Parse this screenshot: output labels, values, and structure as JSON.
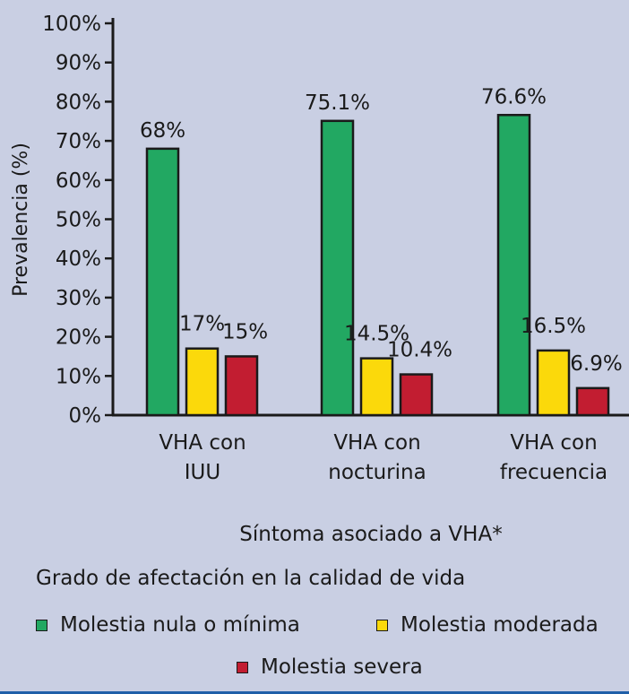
{
  "chart_data": {
    "type": "bar",
    "ylabel": "Prevalencia (%)",
    "xlabel": "Síntoma asociado a VHA*",
    "ylim": [
      0,
      100
    ],
    "yticks": [
      "0%",
      "10%",
      "20%",
      "30%",
      "40%",
      "50%",
      "60%",
      "70%",
      "80%",
      "90%",
      "100%"
    ],
    "categories": [
      [
        "VHA con",
        "IUU"
      ],
      [
        "VHA con",
        "nocturina"
      ],
      [
        "VHA con",
        "frecuencia"
      ]
    ],
    "series": [
      {
        "name": "Molestia nula o mínima",
        "color": "#22a862",
        "values": [
          68,
          75.1,
          76.6
        ],
        "labels": [
          "68%",
          "75.1%",
          "76.6%"
        ]
      },
      {
        "name": "Molestia moderada",
        "color": "#fbd90b",
        "values": [
          17,
          14.5,
          16.5
        ],
        "labels": [
          "17%",
          "14.5%",
          "16.5%"
        ]
      },
      {
        "name": "Molestia severa",
        "color": "#c21d31",
        "values": [
          15,
          10.4,
          6.9
        ],
        "labels": [
          "15%",
          "10.4%",
          "6.9%"
        ]
      }
    ],
    "legend_title": "Grado de afectación en la calidad de vida",
    "legend_position": "bottom",
    "grid": false
  }
}
